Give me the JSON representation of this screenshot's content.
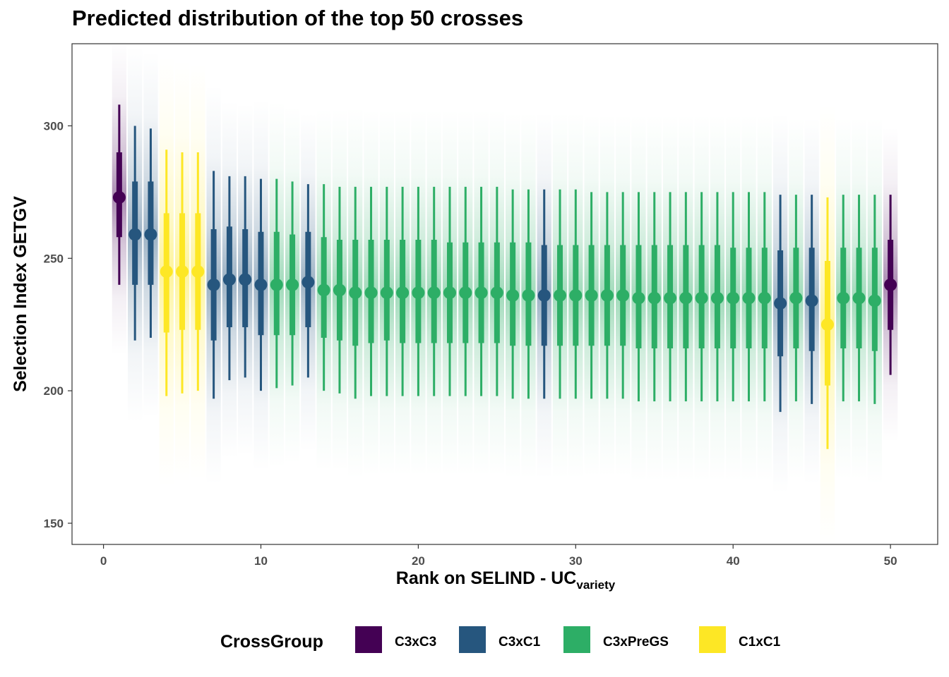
{
  "title": "Predicted distribution of the top 50 crosses",
  "chart_data": {
    "type": "interval-gradient",
    "title": "Predicted distribution of the top 50 crosses",
    "xlabel": "Rank on SELIND - UC",
    "xlabel_subscript": "variety",
    "ylabel": "Selection Index GETGV",
    "xlim": [
      -2,
      53
    ],
    "ylim": [
      142,
      331
    ],
    "x_ticks": [
      0,
      10,
      20,
      30,
      40,
      50
    ],
    "y_ticks": [
      150,
      200,
      250,
      300
    ],
    "grid": false,
    "legend": {
      "title": "CrossGroup",
      "position": "bottom",
      "entries": [
        {
          "name": "C3xC3",
          "color": "#440154"
        },
        {
          "name": "C3xC1",
          "color": "#26567E"
        },
        {
          "name": "C3xPreGS",
          "color": "#2DAE66"
        },
        {
          "name": "C1xC1",
          "color": "#FDE725"
        }
      ]
    },
    "points": [
      {
        "rank": 1,
        "group": "C3xC3",
        "median": 273,
        "q66": [
          258,
          290
        ],
        "q95": [
          240,
          308
        ]
      },
      {
        "rank": 2,
        "group": "C3xC1",
        "median": 259,
        "q66": [
          240,
          279
        ],
        "q95": [
          219,
          300
        ]
      },
      {
        "rank": 3,
        "group": "C3xC1",
        "median": 259,
        "q66": [
          240,
          279
        ],
        "q95": [
          220,
          299
        ]
      },
      {
        "rank": 4,
        "group": "C1xC1",
        "median": 245,
        "q66": [
          222,
          267
        ],
        "q95": [
          198,
          291
        ]
      },
      {
        "rank": 5,
        "group": "C1xC1",
        "median": 245,
        "q66": [
          223,
          267
        ],
        "q95": [
          199,
          290
        ]
      },
      {
        "rank": 6,
        "group": "C1xC1",
        "median": 245,
        "q66": [
          223,
          267
        ],
        "q95": [
          200,
          290
        ]
      },
      {
        "rank": 7,
        "group": "C3xC1",
        "median": 240,
        "q66": [
          219,
          261
        ],
        "q95": [
          197,
          283
        ]
      },
      {
        "rank": 8,
        "group": "C3xC1",
        "median": 242,
        "q66": [
          224,
          262
        ],
        "q95": [
          204,
          281
        ]
      },
      {
        "rank": 9,
        "group": "C3xC1",
        "median": 242,
        "q66": [
          224,
          261
        ],
        "q95": [
          205,
          281
        ]
      },
      {
        "rank": 10,
        "group": "C3xC1",
        "median": 240,
        "q66": [
          221,
          260
        ],
        "q95": [
          200,
          280
        ]
      },
      {
        "rank": 11,
        "group": "C3xPreGS",
        "median": 240,
        "q66": [
          221,
          260
        ],
        "q95": [
          201,
          280
        ]
      },
      {
        "rank": 12,
        "group": "C3xPreGS",
        "median": 240,
        "q66": [
          221,
          259
        ],
        "q95": [
          202,
          279
        ]
      },
      {
        "rank": 13,
        "group": "C3xC1",
        "median": 241,
        "q66": [
          224,
          260
        ],
        "q95": [
          205,
          278
        ]
      },
      {
        "rank": 14,
        "group": "C3xPreGS",
        "median": 238,
        "q66": [
          220,
          258
        ],
        "q95": [
          200,
          278
        ]
      },
      {
        "rank": 15,
        "group": "C3xPreGS",
        "median": 238,
        "q66": [
          219,
          257
        ],
        "q95": [
          199,
          277
        ]
      },
      {
        "rank": 16,
        "group": "C3xPreGS",
        "median": 237,
        "q66": [
          217,
          257
        ],
        "q95": [
          197,
          277
        ]
      },
      {
        "rank": 17,
        "group": "C3xPreGS",
        "median": 237,
        "q66": [
          218,
          257
        ],
        "q95": [
          198,
          277
        ]
      },
      {
        "rank": 18,
        "group": "C3xPreGS",
        "median": 237,
        "q66": [
          219,
          257
        ],
        "q95": [
          198,
          277
        ]
      },
      {
        "rank": 19,
        "group": "C3xPreGS",
        "median": 237,
        "q66": [
          218,
          257
        ],
        "q95": [
          198,
          277
        ]
      },
      {
        "rank": 20,
        "group": "C3xPreGS",
        "median": 237,
        "q66": [
          218,
          257
        ],
        "q95": [
          198,
          277
        ]
      },
      {
        "rank": 21,
        "group": "C3xPreGS",
        "median": 237,
        "q66": [
          218,
          257
        ],
        "q95": [
          198,
          277
        ]
      },
      {
        "rank": 22,
        "group": "C3xPreGS",
        "median": 237,
        "q66": [
          218,
          256
        ],
        "q95": [
          198,
          277
        ]
      },
      {
        "rank": 23,
        "group": "C3xPreGS",
        "median": 237,
        "q66": [
          218,
          256
        ],
        "q95": [
          198,
          277
        ]
      },
      {
        "rank": 24,
        "group": "C3xPreGS",
        "median": 237,
        "q66": [
          218,
          256
        ],
        "q95": [
          198,
          277
        ]
      },
      {
        "rank": 25,
        "group": "C3xPreGS",
        "median": 237,
        "q66": [
          218,
          256
        ],
        "q95": [
          198,
          277
        ]
      },
      {
        "rank": 26,
        "group": "C3xPreGS",
        "median": 236,
        "q66": [
          217,
          256
        ],
        "q95": [
          197,
          276
        ]
      },
      {
        "rank": 27,
        "group": "C3xPreGS",
        "median": 236,
        "q66": [
          217,
          256
        ],
        "q95": [
          197,
          276
        ]
      },
      {
        "rank": 28,
        "group": "C3xC1",
        "median": 236,
        "q66": [
          217,
          255
        ],
        "q95": [
          197,
          276
        ]
      },
      {
        "rank": 29,
        "group": "C3xPreGS",
        "median": 236,
        "q66": [
          217,
          255
        ],
        "q95": [
          197,
          276
        ]
      },
      {
        "rank": 30,
        "group": "C3xPreGS",
        "median": 236,
        "q66": [
          217,
          255
        ],
        "q95": [
          197,
          276
        ]
      },
      {
        "rank": 31,
        "group": "C3xPreGS",
        "median": 236,
        "q66": [
          217,
          255
        ],
        "q95": [
          197,
          275
        ]
      },
      {
        "rank": 32,
        "group": "C3xPreGS",
        "median": 236,
        "q66": [
          217,
          255
        ],
        "q95": [
          197,
          275
        ]
      },
      {
        "rank": 33,
        "group": "C3xPreGS",
        "median": 236,
        "q66": [
          217,
          255
        ],
        "q95": [
          197,
          275
        ]
      },
      {
        "rank": 34,
        "group": "C3xPreGS",
        "median": 235,
        "q66": [
          216,
          255
        ],
        "q95": [
          196,
          275
        ]
      },
      {
        "rank": 35,
        "group": "C3xPreGS",
        "median": 235,
        "q66": [
          216,
          255
        ],
        "q95": [
          196,
          275
        ]
      },
      {
        "rank": 36,
        "group": "C3xPreGS",
        "median": 235,
        "q66": [
          216,
          255
        ],
        "q95": [
          196,
          275
        ]
      },
      {
        "rank": 37,
        "group": "C3xPreGS",
        "median": 235,
        "q66": [
          216,
          255
        ],
        "q95": [
          196,
          275
        ]
      },
      {
        "rank": 38,
        "group": "C3xPreGS",
        "median": 235,
        "q66": [
          216,
          255
        ],
        "q95": [
          196,
          275
        ]
      },
      {
        "rank": 39,
        "group": "C3xPreGS",
        "median": 235,
        "q66": [
          216,
          255
        ],
        "q95": [
          196,
          275
        ]
      },
      {
        "rank": 40,
        "group": "C3xPreGS",
        "median": 235,
        "q66": [
          216,
          254
        ],
        "q95": [
          196,
          275
        ]
      },
      {
        "rank": 41,
        "group": "C3xPreGS",
        "median": 235,
        "q66": [
          216,
          254
        ],
        "q95": [
          196,
          275
        ]
      },
      {
        "rank": 42,
        "group": "C3xPreGS",
        "median": 235,
        "q66": [
          216,
          254
        ],
        "q95": [
          196,
          275
        ]
      },
      {
        "rank": 43,
        "group": "C3xC1",
        "median": 233,
        "q66": [
          213,
          253
        ],
        "q95": [
          192,
          274
        ]
      },
      {
        "rank": 44,
        "group": "C3xPreGS",
        "median": 235,
        "q66": [
          216,
          254
        ],
        "q95": [
          196,
          274
        ]
      },
      {
        "rank": 45,
        "group": "C3xC1",
        "median": 234,
        "q66": [
          215,
          254
        ],
        "q95": [
          195,
          274
        ]
      },
      {
        "rank": 46,
        "group": "C1xC1",
        "median": 225,
        "q66": [
          202,
          249
        ],
        "q95": [
          178,
          273
        ]
      },
      {
        "rank": 47,
        "group": "C3xPreGS",
        "median": 235,
        "q66": [
          216,
          254
        ],
        "q95": [
          196,
          274
        ]
      },
      {
        "rank": 48,
        "group": "C3xPreGS",
        "median": 235,
        "q66": [
          216,
          254
        ],
        "q95": [
          196,
          274
        ]
      },
      {
        "rank": 49,
        "group": "C3xPreGS",
        "median": 234,
        "q66": [
          215,
          254
        ],
        "q95": [
          195,
          274
        ]
      },
      {
        "rank": 50,
        "group": "C3xC3",
        "median": 240,
        "q66": [
          223,
          257
        ],
        "q95": [
          206,
          274
        ]
      }
    ]
  }
}
